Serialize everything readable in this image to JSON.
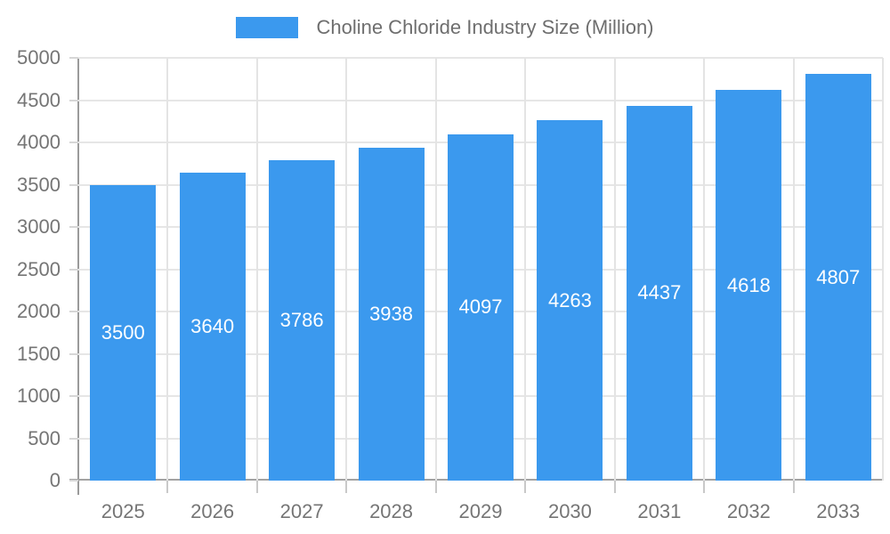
{
  "legend": {
    "series_label": "Choline Chloride Industry Size (Million)"
  },
  "chart_data": {
    "type": "bar",
    "title": "Choline Chloride Industry Size (Million)",
    "categories": [
      "2025",
      "2026",
      "2027",
      "2028",
      "2029",
      "2030",
      "2031",
      "2032",
      "2033"
    ],
    "values": [
      3500,
      3640,
      3786,
      3938,
      4097,
      4263,
      4437,
      4618,
      4807
    ],
    "xlabel": "",
    "ylabel": "",
    "ylim": [
      0,
      5000
    ],
    "ytick_step": 500,
    "grid": true,
    "legend_position": "top",
    "bar_color": "#3b99ee",
    "bar_label_color": "#ffffff",
    "axis_text_color": "#757575"
  }
}
